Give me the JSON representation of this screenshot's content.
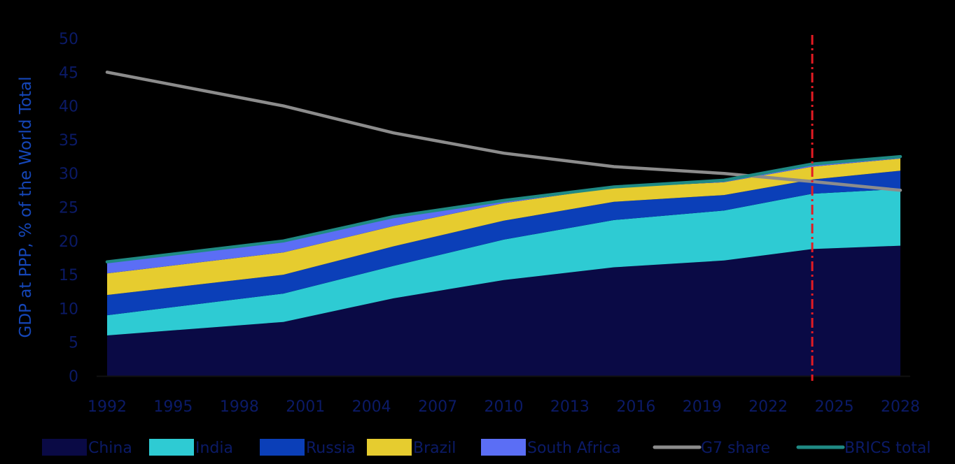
{
  "chart_data": {
    "type": "area",
    "stacked": true,
    "ylabel": "GDP at PPP, % of the World Total",
    "xlabel": "",
    "ylim": [
      0,
      50
    ],
    "yticks": [
      0,
      5,
      10,
      15,
      20,
      25,
      30,
      35,
      40,
      45,
      50
    ],
    "xlim": [
      1992,
      2028
    ],
    "xticks": [
      1992,
      1995,
      1998,
      2001,
      2004,
      2007,
      2010,
      2013,
      2016,
      2019,
      2022,
      2025,
      2028
    ],
    "x": [
      1992,
      2000,
      2005,
      2010,
      2015,
      2020,
      2024,
      2028
    ],
    "grid": false,
    "legend_position": "bottom",
    "forecast_marker_x": 2024,
    "series": [
      {
        "name": "China",
        "kind": "area",
        "color": "#0a0a45",
        "values": [
          6.0,
          8.0,
          11.5,
          14.2,
          16.1,
          17.1,
          18.8,
          19.3
        ]
      },
      {
        "name": "India",
        "kind": "area",
        "color": "#2ecbd3",
        "values": [
          3.0,
          4.2,
          4.8,
          6.0,
          7.0,
          7.4,
          8.2,
          8.4
        ]
      },
      {
        "name": "Russia",
        "kind": "area",
        "color": "#0b3fb8",
        "values": [
          3.0,
          2.8,
          2.9,
          2.8,
          2.7,
          2.3,
          2.1,
          2.7
        ]
      },
      {
        "name": "Brazil",
        "kind": "area",
        "color": "#e6cc2f",
        "values": [
          3.2,
          3.3,
          3.0,
          2.6,
          2.1,
          1.9,
          1.9,
          1.8
        ]
      },
      {
        "name": "South Africa",
        "kind": "area",
        "color": "#5b6ef5",
        "values": [
          1.7,
          1.7,
          1.4,
          0.4,
          0.1,
          0.3,
          0.4,
          0.3
        ]
      },
      {
        "name": "G7 share",
        "kind": "line",
        "color": "#8c8c8c",
        "values": [
          45.0,
          40.0,
          36.0,
          33.0,
          31.0,
          30.0,
          28.8,
          27.5
        ]
      },
      {
        "name": "BRICS total",
        "kind": "line",
        "color": "#1f8a84",
        "values": [
          16.9,
          20.0,
          23.6,
          26.0,
          28.0,
          29.0,
          31.4,
          32.5
        ]
      }
    ],
    "colors": {
      "axis_text": "#0b1a66",
      "axis_title": "#1546b8",
      "forecast_line": "#e31b23",
      "baseline": "#101010"
    }
  }
}
